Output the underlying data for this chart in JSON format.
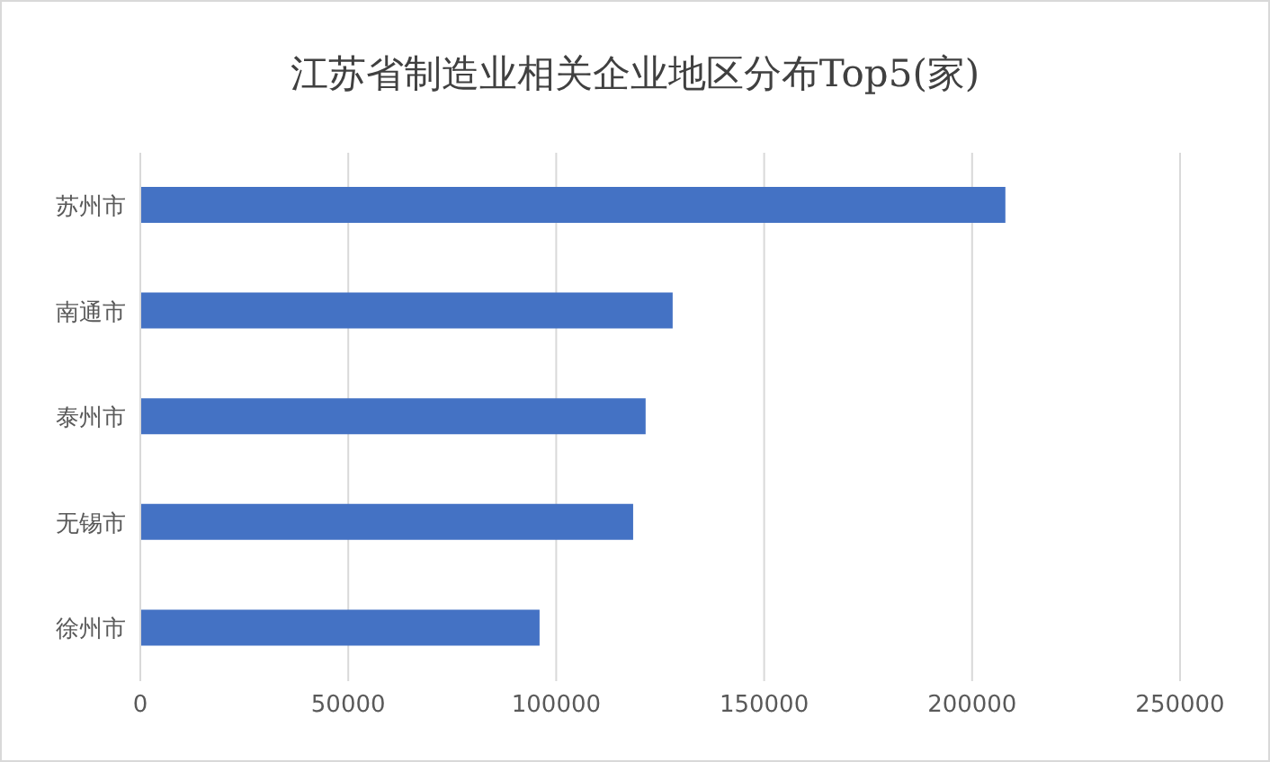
{
  "chart_data": {
    "type": "bar",
    "orientation": "horizontal",
    "title": "江苏省制造业相关企业地区分布Top5(家)",
    "categories": [
      "苏州市",
      "南通市",
      "泰州市",
      "无锡市",
      "徐州市"
    ],
    "values": [
      208000,
      128000,
      121500,
      118500,
      96000
    ],
    "color": "#4472c4",
    "xlim": [
      0,
      250000
    ],
    "xticks": [
      0,
      50000,
      100000,
      150000,
      200000,
      250000
    ],
    "grid": "x"
  }
}
